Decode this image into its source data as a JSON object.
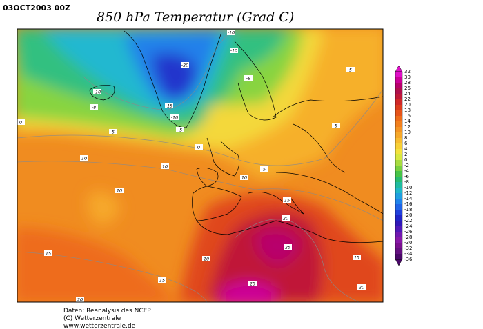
{
  "header": {
    "date": "03OCT2003 00Z",
    "title": "850 hPa Temperatur (Grad C)"
  },
  "footer": {
    "lines": [
      "Daten: Reanalysis des NCEP",
      "(C) Wetterzentrale",
      "www.wetterzentrale.de"
    ]
  },
  "map": {
    "contour_labels": [
      "-10",
      "-10",
      "-20",
      "-10",
      "-8",
      "-15",
      "-10",
      "-5",
      "-8",
      "0",
      "5",
      "0",
      "5",
      "5",
      "10",
      "10",
      "10",
      "10",
      "5",
      "15",
      "20",
      "25",
      "15",
      "10",
      "15",
      "25",
      "15",
      "20",
      "20"
    ]
  },
  "colorbar": {
    "labels": [
      "32",
      "30",
      "28",
      "26",
      "24",
      "22",
      "20",
      "18",
      "16",
      "14",
      "12",
      "10",
      "8",
      "6",
      "4",
      "2",
      "0",
      "-2",
      "-4",
      "-6",
      "-8",
      "-10",
      "-12",
      "-14",
      "-16",
      "-18",
      "-20",
      "-22",
      "-24",
      "-26",
      "-28",
      "-30",
      "-32",
      "-34",
      "-36"
    ],
    "colors": [
      "#e010c8",
      "#cc0098",
      "#b8006c",
      "#b0104c",
      "#c01838",
      "#d02828",
      "#dc3c1c",
      "#e6541a",
      "#ee6c1a",
      "#f2801e",
      "#f49424",
      "#f6a82a",
      "#f8bc30",
      "#f8d036",
      "#f4e23c",
      "#d8e840",
      "#a8dc40",
      "#78d040",
      "#48c448",
      "#28bc70",
      "#20bca0",
      "#20b8c8",
      "#20a0e0",
      "#2084ec",
      "#2064e8",
      "#2040dc",
      "#2024c8",
      "#3018b8",
      "#5018b8",
      "#7018b0",
      "#8818a8",
      "#7a1090",
      "#641080",
      "#4a0868"
    ]
  }
}
